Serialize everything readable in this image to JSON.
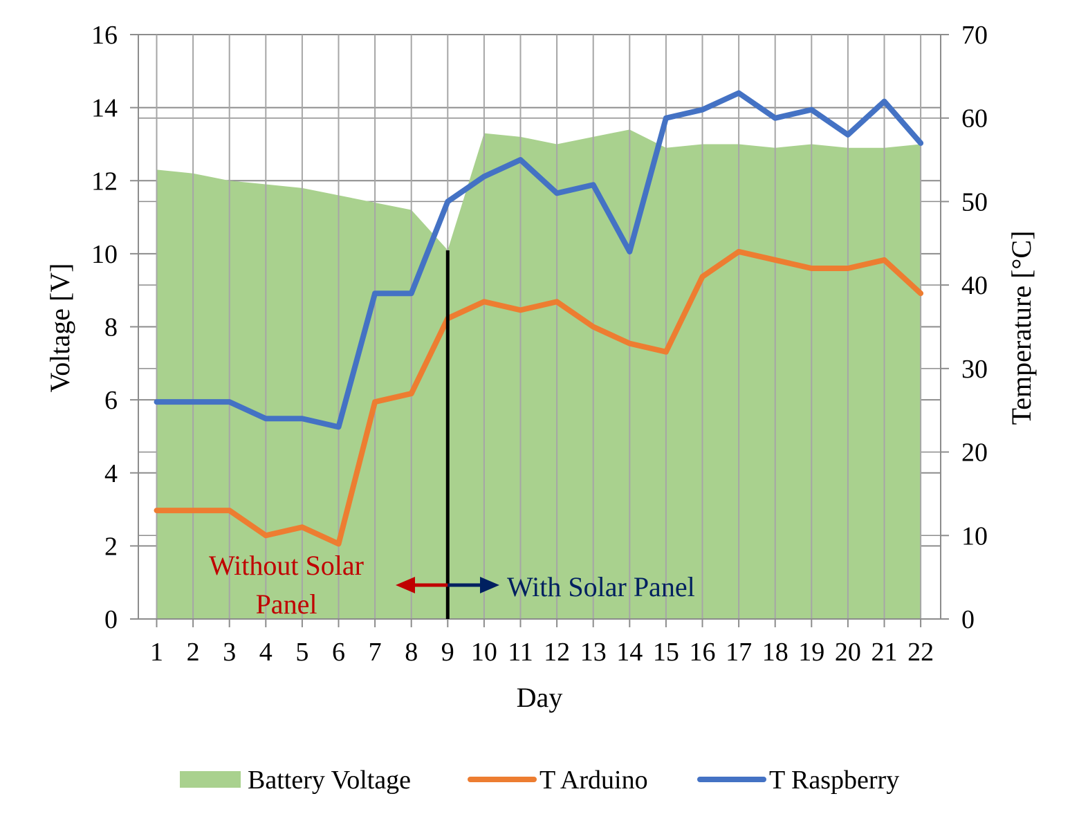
{
  "chart_data": {
    "type": "area",
    "xlabel": "Day",
    "ylabel_left": "Voltage [V]",
    "ylabel_right": "Temperature [°C]",
    "x": [
      1,
      2,
      3,
      4,
      5,
      6,
      7,
      8,
      9,
      10,
      11,
      12,
      13,
      14,
      15,
      16,
      17,
      18,
      19,
      20,
      21,
      22
    ],
    "ylim_left": [
      0,
      16
    ],
    "ylim_right": [
      0,
      70
    ],
    "yticks_left": [
      0,
      2,
      4,
      6,
      8,
      10,
      12,
      14,
      16
    ],
    "yticks_right": [
      0,
      10,
      20,
      30,
      40,
      50,
      60,
      70
    ],
    "series": [
      {
        "name": "Battery Voltage",
        "kind": "area",
        "axis": "left",
        "color": "#a9d18e",
        "values": [
          12.3,
          12.2,
          12.0,
          11.9,
          11.8,
          11.6,
          11.4,
          11.2,
          10.1,
          13.3,
          13.2,
          13.0,
          13.2,
          13.4,
          12.9,
          13.0,
          13.0,
          12.9,
          13.0,
          12.9,
          12.9,
          13.0
        ]
      },
      {
        "name": "T Arduino",
        "kind": "line",
        "axis": "right",
        "color": "#ed7d31",
        "values": [
          13,
          13,
          13,
          10,
          11,
          9,
          26,
          27,
          36,
          38,
          37,
          38,
          35,
          33,
          32,
          41,
          44,
          43,
          42,
          42,
          43,
          39
        ]
      },
      {
        "name": "T Raspberry",
        "kind": "line",
        "axis": "right",
        "color": "#4472c4",
        "values": [
          26,
          26,
          26,
          24,
          24,
          23,
          39,
          39,
          50,
          53,
          55,
          51,
          52,
          44,
          60,
          61,
          63,
          60,
          61,
          58,
          62,
          57
        ]
      }
    ],
    "annotations": {
      "divider_day": 9,
      "without_line1": "Without Solar",
      "without_line2": "Panel",
      "without_color": "#c00000",
      "with_text": "With Solar Panel",
      "with_color": "#002060"
    },
    "grid": true,
    "legend_position": "bottom"
  }
}
